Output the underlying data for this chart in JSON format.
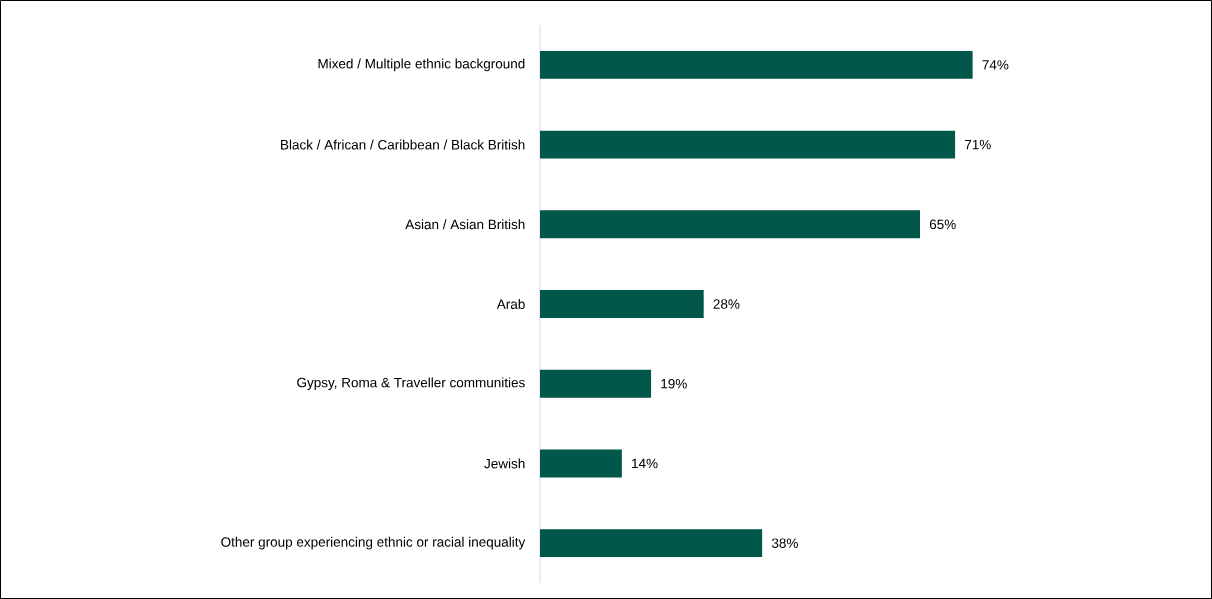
{
  "chart_data": {
    "type": "bar",
    "orientation": "horizontal",
    "categories": [
      "Mixed / Multiple ethnic background",
      "Black / African / Caribbean / Black British",
      "Asian / Asian British",
      "Arab",
      "Gypsy, Roma & Traveller communities",
      "Jewish",
      "Other group experiencing ethnic or racial inequality"
    ],
    "values": [
      74,
      71,
      65,
      28,
      19,
      14,
      38
    ],
    "value_labels": [
      "74%",
      "71%",
      "65%",
      "28%",
      "19%",
      "14%",
      "38%"
    ],
    "color": "#00574a"
  }
}
